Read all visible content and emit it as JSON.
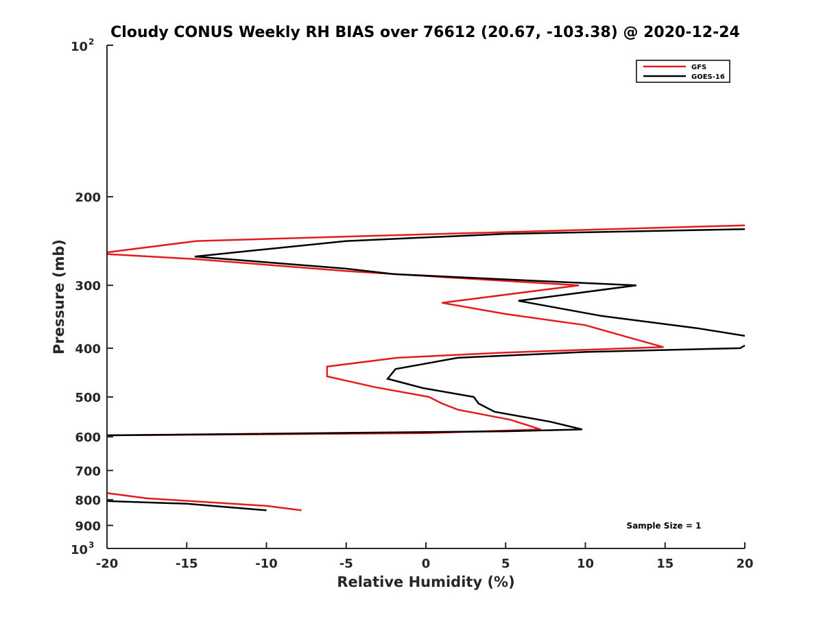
{
  "chart_data": {
    "type": "line",
    "title": "Cloudy CONUS Weekly RH BIAS over 76612 (20.67, -103.38) @ 2020-12-24",
    "xlabel": "Relative Humidity (%)",
    "ylabel": "Pressure (mb)",
    "xlim": [
      -20,
      20
    ],
    "ylim": [
      100,
      1000
    ],
    "yscale": "log",
    "y_inverted": true,
    "x_ticks": [
      "-20",
      "-15",
      "-10",
      "-5",
      "0",
      "5",
      "10",
      "15",
      "20"
    ],
    "y_ticks": [
      {
        "value": 100,
        "base": "10",
        "exp": "2"
      },
      {
        "value": 200,
        "label": "200"
      },
      {
        "value": 300,
        "label": "300"
      },
      {
        "value": 400,
        "label": "400"
      },
      {
        "value": 500,
        "label": "500"
      },
      {
        "value": 600,
        "label": "600"
      },
      {
        "value": 700,
        "label": "700"
      },
      {
        "value": 800,
        "label": "800"
      },
      {
        "value": 900,
        "label": "900"
      },
      {
        "value": 1000,
        "base": "10",
        "exp": "3"
      }
    ],
    "legend_position": "top-right",
    "annotation": "Sample Size = 1",
    "series": [
      {
        "name": "GFS",
        "color": "#e41a1c",
        "segments": [
          [
            [
              20,
              228
            ],
            [
              -5,
              240
            ],
            [
              -14.4,
              245
            ],
            [
              -20,
              258
            ],
            [
              -20,
              260
            ],
            [
              -14.5,
              266
            ],
            [
              -5,
              281
            ],
            [
              5,
              294
            ],
            [
              9.6,
              300
            ],
            [
              1,
              325
            ],
            [
              5,
              342
            ],
            [
              10,
              360
            ],
            [
              13,
              383
            ],
            [
              14.9,
              398
            ],
            [
              5,
              408
            ],
            [
              -1.8,
              418
            ],
            [
              -6.2,
              435
            ],
            [
              -6.2,
              455
            ],
            [
              -3.2,
              478
            ],
            [
              0.2,
              500
            ],
            [
              1,
              515
            ],
            [
              2,
              530
            ],
            [
              5.3,
              555
            ],
            [
              7.2,
              580
            ],
            [
              0,
              590
            ],
            [
              -20,
              596
            ]
          ],
          [
            [
              -20,
              776
            ],
            [
              -17.5,
              795
            ],
            [
              -10,
              823
            ],
            [
              -7.8,
              840
            ]
          ]
        ]
      },
      {
        "name": "GOES-16",
        "color": "#000000",
        "segments": [
          [
            [
              20,
              232
            ],
            [
              5,
              237
            ],
            [
              -5,
              245
            ],
            [
              -14.5,
              263
            ],
            [
              -5,
              278
            ],
            [
              -2,
              285
            ],
            [
              9,
              296
            ],
            [
              13.2,
              300
            ],
            [
              5.8,
              322
            ],
            [
              11,
              345
            ],
            [
              17,
              365
            ],
            [
              20,
              378
            ]
          ],
          [
            [
              20,
              395
            ],
            [
              19.7,
              400
            ],
            [
              10,
              407
            ],
            [
              2,
              418
            ],
            [
              -1.9,
              440
            ],
            [
              -2.4,
              460
            ],
            [
              -0.2,
              480
            ],
            [
              3,
              500
            ],
            [
              3.3,
              515
            ],
            [
              4.3,
              535
            ],
            [
              7.8,
              560
            ],
            [
              9.8,
              580
            ],
            [
              5,
              585
            ],
            [
              -20,
              596
            ]
          ],
          [
            [
              -20,
              805
            ],
            [
              -15,
              815
            ],
            [
              -10,
              840
            ]
          ]
        ]
      }
    ]
  }
}
